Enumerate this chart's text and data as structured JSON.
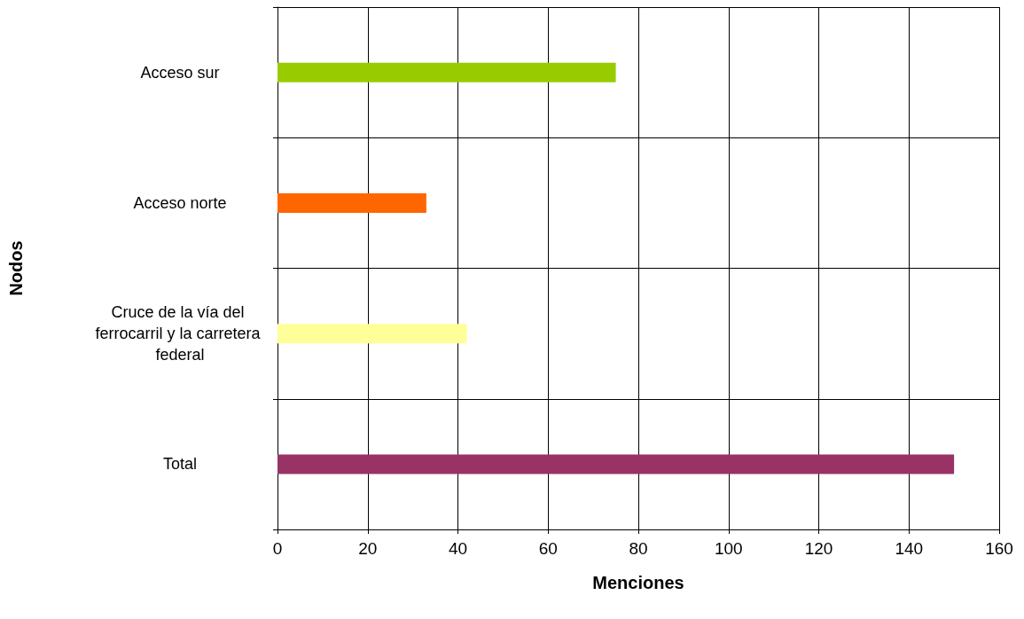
{
  "chart_data": {
    "type": "bar",
    "orientation": "horizontal",
    "xlabel": "Menciones",
    "ylabel": "Nodos",
    "categories": [
      "Acceso sur",
      "Acceso norte",
      "Cruce de la vía del ferrocarril y la carretera federal",
      "Total"
    ],
    "values": [
      75,
      33,
      42,
      150
    ],
    "colors": [
      "#99cc00",
      "#ff6600",
      "#ffff99",
      "#993366"
    ],
    "xlim": [
      0,
      160
    ],
    "xticks": [
      0,
      20,
      40,
      60,
      80,
      100,
      120,
      140,
      160
    ],
    "grid": true
  }
}
